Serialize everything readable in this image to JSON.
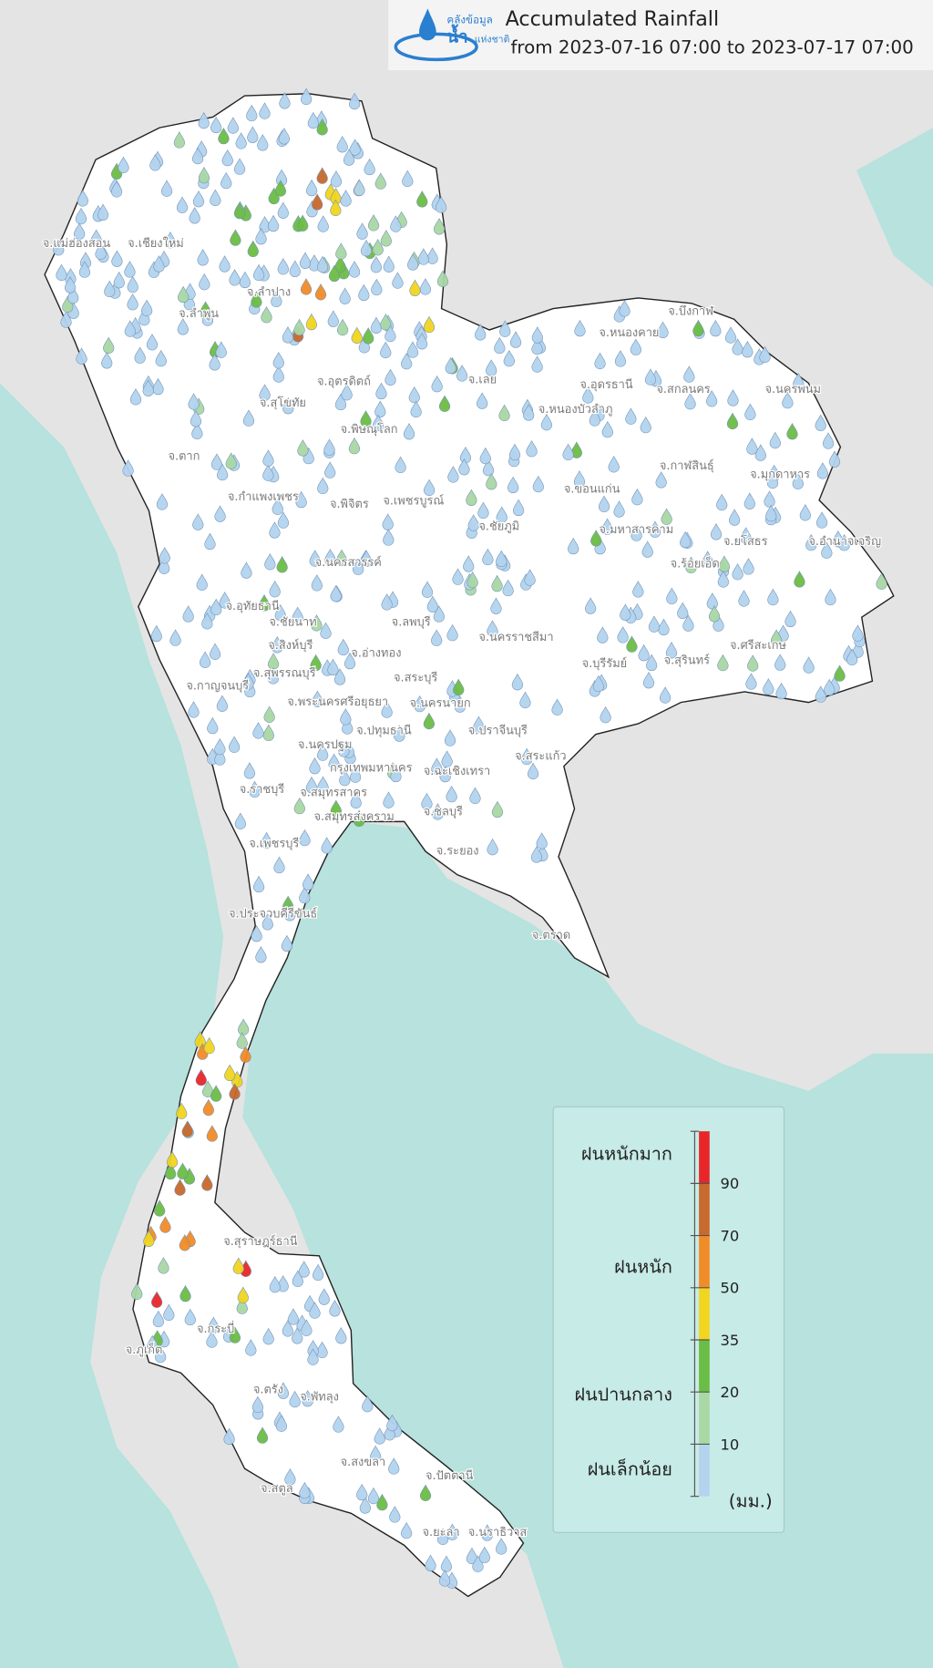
{
  "header": {
    "title": "Accumulated Rainfall",
    "subtitle": "from  2023-07-16 07:00 to 2023-07-17 07:00",
    "logo": [
      "คลังข้อมูล",
      "น้ำ",
      "แห่งชาติ"
    ]
  },
  "legend": {
    "colors": [
      "#e8262a",
      "#c8692d",
      "#f28c28",
      "#f1d51f",
      "#6cbd45",
      "#a9d8a4",
      "#b3d3ef"
    ],
    "ticks": [
      90,
      70,
      50,
      35,
      20,
      10
    ],
    "class_labels": [
      "ฝนหนักมาก",
      "ฝนหนัก",
      "ฝนปานกลาง",
      "ฝนเล็กน้อย"
    ],
    "unit": "(มม.)"
  },
  "provinces": [
    "จ.แม่ฮ่องสอน",
    "จ.เชียงใหม่",
    "จ.ลำพูน",
    "จ.ลำปาง",
    "จ.สุโขทัย",
    "จ.อุตรดิตถ์",
    "จ.พิษณุโลก",
    "จ.ตาก",
    "จ.กำแพงเพชร",
    "จ.พิจิตร",
    "จ.เพชรบูรณ์",
    "จ.นครสวรรค์",
    "จ.อุทัยธานี",
    "จ.ชัยนาท",
    "จ.ลพบุรี",
    "จ.สิงห์บุรี",
    "จ.อ่างทอง",
    "จ.สุพรรณบุรี",
    "จ.สระบุรี",
    "จ.กาญจนบุรี",
    "จ.พระนครศรีอยุธยา",
    "จ.นครนายก",
    "จ.ปทุมธานี",
    "จ.นครปฐม",
    "กรุงเทพมหานคร",
    "จ.ราชบุรี",
    "จ.สมุทรสาคร",
    "จ.สมุทรสงคราม",
    "จ.เพชรบุรี",
    "จ.ประจวบคีรีขันธ์",
    "จ.ฉะเชิงเทรา",
    "จ.ชลบุรี",
    "จ.ระยอง",
    "จ.ตราด",
    "จ.ปราจีนบุรี",
    "จ.สระแก้ว",
    "จ.นครราชสีมา",
    "จ.บุรีรัมย์",
    "จ.สุรินทร์",
    "จ.ศรีสะเกษ",
    "จ.ร้อยเอ็ด",
    "จ.ยโสธร",
    "จ.อำนาจเจริญ",
    "จ.มหาสารคาม",
    "จ.ขอนแก่น",
    "จ.ชัยภูมิ",
    "จ.กาฬสินธุ์",
    "จ.มุกดาหาร",
    "จ.สกลนคร",
    "จ.นครพนม",
    "จ.เลย",
    "จ.หนองบัวลำภู",
    "จ.อุดรธานี",
    "จ.หนองคาย",
    "จ.บึงกาฬ",
    "จ.สุราษฎร์ธานี",
    "จ.กระบี่",
    "จ.ภูเก็ต",
    "จ.ตรัง",
    "จ.พัทลุง",
    "จ.สงขลา",
    "จ.สตูล",
    "จ.ปัตตานี",
    "จ.ยะลา",
    "จ.นราธิวาส"
  ]
}
